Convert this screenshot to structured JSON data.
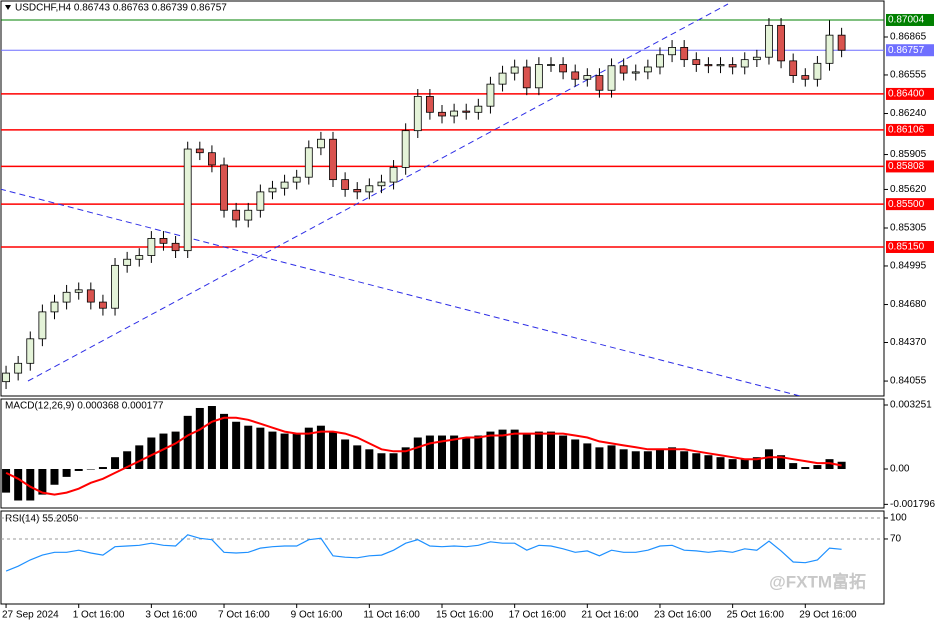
{
  "chart_data": [
    {
      "type": "candlestick",
      "title": "USDCHF,H4 0.86743 0.86763 0.86739 0.86757",
      "xlim": [
        -0.5,
        72.5
      ],
      "xticks": [
        {
          "value": 0,
          "label": "27 Sep 2024"
        },
        {
          "value": 6,
          "label": "1 Oct 16:00"
        },
        {
          "value": 12,
          "label": "3 Oct 16:00"
        },
        {
          "value": 18,
          "label": "7 Oct 16:00"
        },
        {
          "value": 24,
          "label": "9 Oct 16:00"
        },
        {
          "value": 30,
          "label": "11 Oct 16:00"
        },
        {
          "value": 36,
          "label": "15 Oct 16:00"
        },
        {
          "value": 42,
          "label": "17 Oct 16:00"
        },
        {
          "value": 48,
          "label": "21 Oct 16:00"
        },
        {
          "value": 54,
          "label": "23 Oct 16:00"
        },
        {
          "value": 60,
          "label": "25 Oct 16:00"
        },
        {
          "value": 66,
          "label": "29 Oct 16:00"
        }
      ],
      "ylim": [
        0.83933,
        0.87159
      ],
      "yticks": [
        0.86865,
        0.86555,
        {
          "value": 0.8624,
          "label": "0.86240"
        },
        0.85905,
        {
          "value": 0.8562,
          "label": "0.85620"
        },
        0.85305,
        0.84995,
        {
          "value": 0.8468,
          "label": "0.84680"
        },
        {
          "value": 0.8437,
          "label": "0.84370"
        },
        0.84055
      ],
      "levels": [
        {
          "value": 0.87004,
          "color": "#008000"
        },
        {
          "value": 0.86757,
          "color": "#6f6fff"
        },
        {
          "value": 0.864,
          "label": "0.86400",
          "color": "#ff0000"
        },
        {
          "value": 0.86106,
          "color": "#ff0000"
        },
        {
          "value": 0.85808,
          "color": "#ff0000"
        },
        {
          "value": 0.855,
          "label": "0.85500",
          "color": "#ff0000"
        },
        {
          "value": 0.8515,
          "label": "0.85150",
          "color": "#ff0000"
        }
      ],
      "up_color": "#e4f3d8",
      "down_color": "#d9534f",
      "open": [
        0.8405,
        0.8412,
        0.842,
        0.844,
        0.8462,
        0.847,
        0.8478,
        0.848,
        0.847,
        0.8465,
        0.85,
        0.8505,
        0.8508,
        0.8522,
        0.8518,
        0.8512,
        0.8595,
        0.8592,
        0.8582,
        0.8545,
        0.8537,
        0.8545,
        0.856,
        0.8563,
        0.8568,
        0.8572,
        0.8596,
        0.8603,
        0.857,
        0.8562,
        0.856,
        0.8565,
        0.8568,
        0.858,
        0.861,
        0.8638,
        0.8625,
        0.8622,
        0.8626,
        0.8625,
        0.863,
        0.8648,
        0.8657,
        0.8662,
        0.8645,
        0.8664,
        0.8664,
        0.8658,
        0.8652,
        0.8655,
        0.8643,
        0.8663,
        0.8657,
        0.8658,
        0.8662,
        0.8672,
        0.8678,
        0.8668,
        0.8664,
        0.8663,
        0.8664,
        0.8662,
        0.8668,
        0.867,
        0.8696,
        0.8667,
        0.8655,
        0.8652,
        0.8665,
        0.8688
      ],
      "high": [
        0.8418,
        0.8426,
        0.8446,
        0.8468,
        0.8476,
        0.8484,
        0.8486,
        0.8486,
        0.8476,
        0.8506,
        0.8511,
        0.8514,
        0.8528,
        0.8528,
        0.8524,
        0.8601,
        0.8601,
        0.8598,
        0.8588,
        0.8551,
        0.8551,
        0.8566,
        0.8569,
        0.8574,
        0.8578,
        0.8602,
        0.8609,
        0.8609,
        0.8576,
        0.8568,
        0.8571,
        0.8574,
        0.8586,
        0.8616,
        0.8644,
        0.8644,
        0.8631,
        0.8632,
        0.8632,
        0.8636,
        0.8654,
        0.8663,
        0.8668,
        0.8668,
        0.867,
        0.867,
        0.867,
        0.8664,
        0.8661,
        0.8661,
        0.8669,
        0.8669,
        0.8664,
        0.8668,
        0.8678,
        0.8684,
        0.8684,
        0.8674,
        0.867,
        0.867,
        0.867,
        0.8674,
        0.8676,
        0.8702,
        0.8702,
        0.8673,
        0.8661,
        0.8671,
        0.87,
        0.8694
      ],
      "low": [
        0.8399,
        0.8406,
        0.8414,
        0.8434,
        0.8456,
        0.8464,
        0.8472,
        0.8464,
        0.8459,
        0.8459,
        0.8494,
        0.8499,
        0.8502,
        0.8512,
        0.8506,
        0.8506,
        0.8586,
        0.8576,
        0.8539,
        0.8531,
        0.8531,
        0.8539,
        0.8554,
        0.8557,
        0.8562,
        0.8566,
        0.859,
        0.8564,
        0.8556,
        0.8554,
        0.8554,
        0.8559,
        0.8562,
        0.8574,
        0.8604,
        0.8619,
        0.8616,
        0.8616,
        0.8619,
        0.8619,
        0.8624,
        0.8642,
        0.8651,
        0.8639,
        0.8639,
        0.8658,
        0.8652,
        0.8646,
        0.8646,
        0.8637,
        0.8637,
        0.8651,
        0.8651,
        0.8652,
        0.8656,
        0.8666,
        0.8662,
        0.8658,
        0.8657,
        0.8657,
        0.8656,
        0.8656,
        0.8662,
        0.8664,
        0.8661,
        0.8649,
        0.8646,
        0.8646,
        0.8659,
        0.867
      ],
      "close": [
        0.8412,
        0.842,
        0.844,
        0.8462,
        0.847,
        0.8478,
        0.848,
        0.847,
        0.8465,
        0.85,
        0.8505,
        0.8508,
        0.8522,
        0.8518,
        0.8512,
        0.8595,
        0.8592,
        0.8582,
        0.8545,
        0.8537,
        0.8545,
        0.856,
        0.8563,
        0.8568,
        0.8572,
        0.8596,
        0.8603,
        0.857,
        0.8562,
        0.856,
        0.8565,
        0.8568,
        0.858,
        0.861,
        0.8638,
        0.8625,
        0.8622,
        0.8626,
        0.8625,
        0.863,
        0.8648,
        0.8657,
        0.8662,
        0.8645,
        0.8664,
        0.8664,
        0.8658,
        0.8652,
        0.8655,
        0.8643,
        0.8663,
        0.8657,
        0.8658,
        0.8662,
        0.8672,
        0.8678,
        0.8668,
        0.8664,
        0.8663,
        0.8664,
        0.8662,
        0.8668,
        0.867,
        0.8696,
        0.8667,
        0.8655,
        0.8652,
        0.8665,
        0.8688,
        0.86757
      ]
    },
    {
      "type": "macd",
      "title": "MACD(12,26,9) 0.000368 0.000177",
      "ylim": [
        -0.001981,
        0.003556
      ],
      "yticks": [
        0.003251,
        {
          "value": 0,
          "label": "0.00"
        },
        -0.001796
      ],
      "histogram": {
        "color": "#000000",
        "values": [
          -0.0012,
          -0.0016,
          -0.0016,
          -0.0013,
          -0.0008,
          -0.0004,
          -0.0001,
          0.0,
          0.0001,
          0.0006,
          0.0009,
          0.0012,
          0.0016,
          0.0018,
          0.0019,
          0.0027,
          0.0031,
          0.0032,
          0.0028,
          0.0024,
          0.0022,
          0.0021,
          0.0019,
          0.0018,
          0.0018,
          0.0021,
          0.0022,
          0.0019,
          0.0015,
          0.0012,
          0.001,
          0.0008,
          0.0008,
          0.0011,
          0.0016,
          0.0017,
          0.0017,
          0.0017,
          0.0016,
          0.0017,
          0.0019,
          0.002,
          0.002,
          0.0018,
          0.0019,
          0.0019,
          0.0017,
          0.0015,
          0.0013,
          0.0011,
          0.0012,
          0.001,
          0.0009,
          0.0009,
          0.001,
          0.0011,
          0.0009,
          0.0008,
          0.0007,
          0.0006,
          0.0005,
          0.0005,
          0.0006,
          0.001,
          0.0007,
          0.0003,
          0.0001,
          0.0002,
          0.0005,
          0.000368
        ]
      },
      "signal": {
        "color": "#ff0000",
        "values": [
          -0.0002,
          -0.0005,
          -0.0009,
          -0.0012,
          -0.0013,
          -0.0012,
          -0.001,
          -0.0007,
          -0.0005,
          -0.0002,
          0.0001,
          0.0004,
          0.0007,
          0.001,
          0.0013,
          0.0017,
          0.002,
          0.0024,
          0.0026,
          0.0026,
          0.0025,
          0.0023,
          0.0021,
          0.0019,
          0.0018,
          0.0018,
          0.0019,
          0.0019,
          0.0018,
          0.0016,
          0.0013,
          0.001,
          0.0009,
          0.0009,
          0.0011,
          0.0013,
          0.0014,
          0.0015,
          0.0016,
          0.0016,
          0.0017,
          0.0017,
          0.0018,
          0.0018,
          0.0018,
          0.0018,
          0.0018,
          0.0017,
          0.0016,
          0.0014,
          0.0013,
          0.0012,
          0.0011,
          0.001,
          0.001,
          0.001,
          0.001,
          0.0009,
          0.0008,
          0.0007,
          0.0006,
          0.0005,
          0.0005,
          0.0006,
          0.0006,
          0.0005,
          0.0004,
          0.0003,
          0.0003,
          0.000177
        ]
      }
    },
    {
      "type": "rsi",
      "title": "RSI(14) 55.2050",
      "watermark": "@FXTM富拓",
      "ylim": [
        -23,
        110
      ],
      "yticks": [
        100,
        70
      ],
      "color": "#1e90ff",
      "values": [
        24,
        31,
        40,
        47,
        51,
        51,
        54,
        50,
        47,
        59,
        60,
        61,
        64,
        61,
        60,
        76,
        71,
        69,
        51,
        50,
        51,
        57,
        59,
        60,
        60,
        69,
        71,
        46,
        44,
        43,
        46,
        47,
        54,
        64,
        69,
        60,
        59,
        60,
        59,
        61,
        66,
        64,
        64,
        54,
        61,
        60,
        56,
        51,
        53,
        46,
        54,
        51,
        51,
        54,
        60,
        61,
        54,
        53,
        51,
        53,
        51,
        56,
        54,
        67,
        53,
        37,
        36,
        40,
        57,
        55.205
      ]
    }
  ]
}
